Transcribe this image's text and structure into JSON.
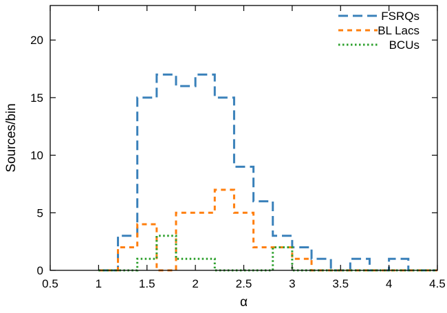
{
  "chart_data": {
    "type": "histogram",
    "xlabel": "α",
    "ylabel": "Sources/bin",
    "xlim": [
      0.5,
      4.5
    ],
    "ylim": [
      0,
      23
    ],
    "grid": false,
    "legend_position": "top-right",
    "x_ticks": [
      0.5,
      1,
      1.5,
      2,
      2.5,
      3,
      3.5,
      4,
      4.5
    ],
    "x_tick_labels": [
      "0.5",
      "1",
      "1.5",
      "2",
      "2.5",
      "3",
      "3.5",
      "4",
      "4.5"
    ],
    "y_ticks": [
      0,
      5,
      10,
      15,
      20
    ],
    "y_tick_labels": [
      "0",
      "5",
      "10",
      "15",
      "20"
    ],
    "bin_edges": [
      1.0,
      1.2,
      1.4,
      1.6,
      1.8,
      2.0,
      2.2,
      2.4,
      2.6,
      2.8,
      3.0,
      3.2,
      3.4,
      3.6,
      3.8,
      4.0,
      4.2,
      4.4,
      4.5
    ],
    "series": [
      {
        "name": "FSRQs",
        "color": "#3a81ba",
        "style": "dashed",
        "values": [
          0,
          3,
          15,
          17,
          16,
          17,
          15,
          9,
          6,
          3,
          2,
          1,
          0,
          1,
          0,
          1,
          0,
          0
        ]
      },
      {
        "name": "BL Lacs",
        "color": "#ff7f0e",
        "style": "short-dashed",
        "values": [
          0,
          2,
          4,
          0,
          5,
          5,
          7,
          5,
          2,
          2,
          1,
          0,
          0,
          0,
          0,
          0,
          0,
          0
        ]
      },
      {
        "name": "BCUs",
        "color": "#2ca02c",
        "style": "dotted",
        "values": [
          0,
          0,
          1,
          3,
          1,
          1,
          0,
          0,
          0,
          2,
          0,
          0,
          0,
          0,
          0,
          0,
          0,
          0
        ]
      }
    ]
  }
}
